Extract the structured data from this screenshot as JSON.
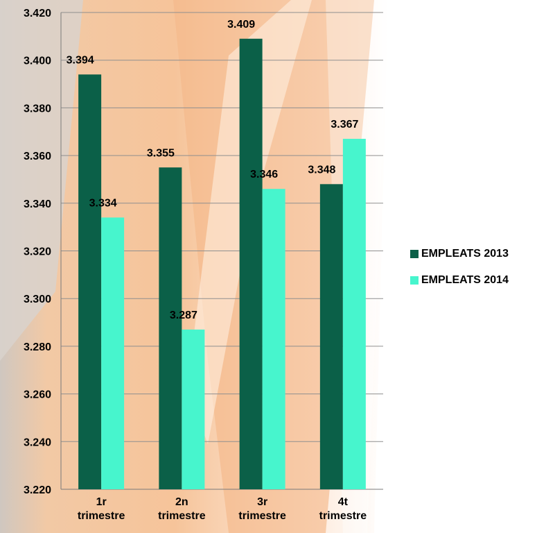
{
  "chart_data": {
    "type": "bar",
    "title": "",
    "xlabel": "",
    "ylabel": "",
    "categories": [
      [
        "1r",
        "trimestre"
      ],
      [
        "2n",
        "trimestre"
      ],
      [
        "3r",
        "trimestre"
      ],
      [
        "4t",
        "trimestre"
      ]
    ],
    "series": [
      {
        "name": "EMPLEATS 2013",
        "color": "#0b6048",
        "values": [
          3394,
          3355,
          3409,
          3348
        ],
        "labels": [
          "3.394",
          "3.355",
          "3.409",
          "3.348"
        ]
      },
      {
        "name": "EMPLEATS 2014",
        "color": "#47f5cd",
        "values": [
          3334,
          3287,
          3346,
          3367
        ],
        "labels": [
          "3.334",
          "3.287",
          "3.346",
          "3.367"
        ]
      }
    ],
    "ylim": [
      3220,
      3420
    ],
    "yticks": [
      3220,
      3240,
      3260,
      3280,
      3300,
      3320,
      3340,
      3360,
      3380,
      3400,
      3420
    ],
    "ytick_labels": [
      "3.220",
      "3.240",
      "3.260",
      "3.280",
      "3.300",
      "3.320",
      "3.340",
      "3.360",
      "3.380",
      "3.400",
      "3.420"
    ],
    "grid": true,
    "legend_position": "right"
  }
}
